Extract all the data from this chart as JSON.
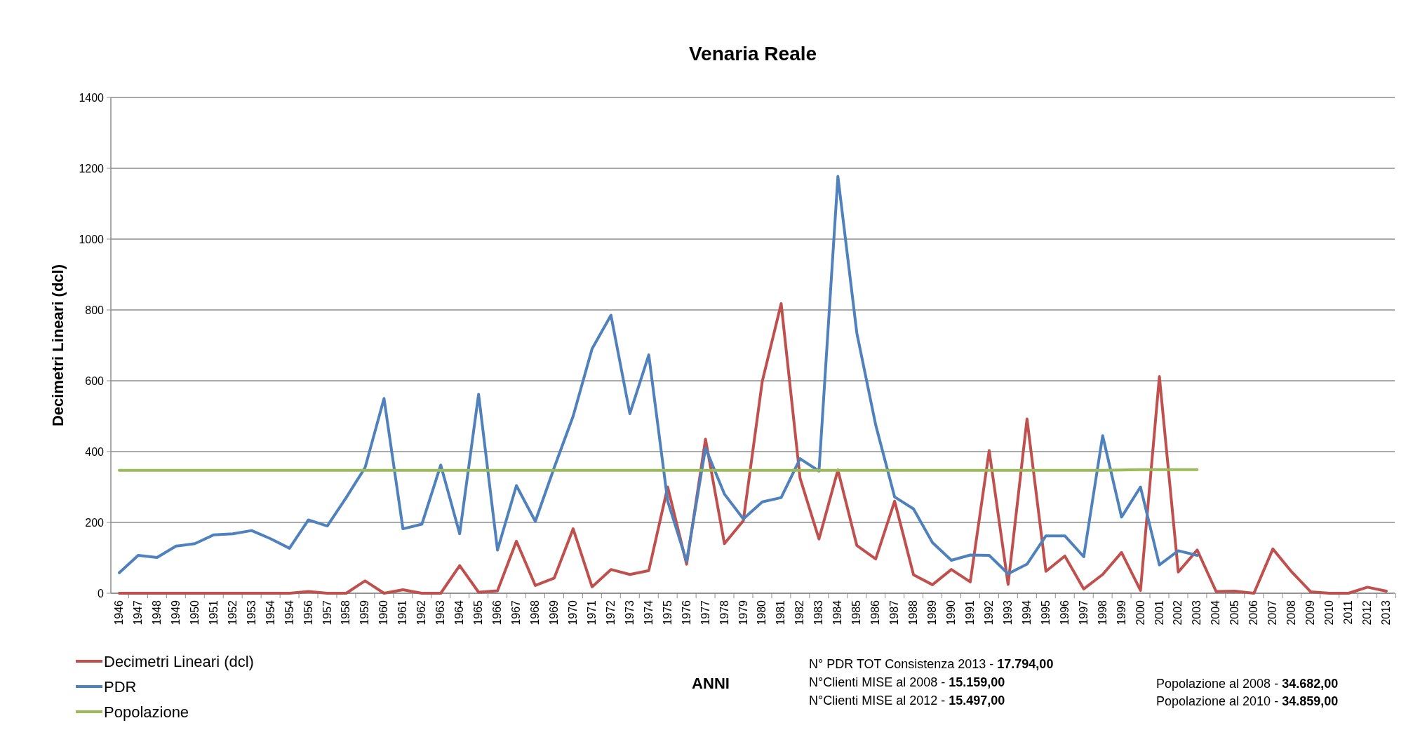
{
  "chart_data": {
    "type": "line",
    "title": "Venaria Reale",
    "xlabel": "ANNI",
    "ylabel": "Decimetri Lineari (dcl)",
    "categories": [
      "1946",
      "1947",
      "1948",
      "1949",
      "1950",
      "1951",
      "1952",
      "1953",
      "1954",
      "1954",
      "1956",
      "1957",
      "1958",
      "1959",
      "1960",
      "1961",
      "1962",
      "1963",
      "1964",
      "1965",
      "1966",
      "1967",
      "1968",
      "1969",
      "1970",
      "1971",
      "1972",
      "1973",
      "1974",
      "1975",
      "1976",
      "1977",
      "1978",
      "1979",
      "1980",
      "1981",
      "1982",
      "1983",
      "1984",
      "1985",
      "1986",
      "1987",
      "1988",
      "1989",
      "1990",
      "1991",
      "1992",
      "1993",
      "1994",
      "1995",
      "1996",
      "1997",
      "1998",
      "1999",
      "2000",
      "2001",
      "2002",
      "2003",
      "2004",
      "2005",
      "2006",
      "2007",
      "2008",
      "2009",
      "2010",
      "2011",
      "2012",
      "2013"
    ],
    "series": [
      {
        "name": "Decimetri Lineari (dcl)",
        "color": "#c0504d",
        "values": [
          0,
          0,
          0,
          0,
          0,
          0,
          0,
          0,
          0,
          0,
          5,
          0,
          0,
          35,
          0,
          10,
          0,
          0,
          78,
          3,
          7,
          147,
          22,
          43,
          182,
          18,
          67,
          53,
          64,
          300,
          82,
          435,
          140,
          205,
          598,
          818,
          325,
          153,
          348,
          135,
          97,
          260,
          52,
          24,
          67,
          32,
          403,
          25,
          492,
          62,
          105,
          12,
          53,
          115,
          8,
          612,
          60,
          122,
          5,
          6,
          0,
          125,
          60,
          4,
          0,
          0,
          17,
          6
        ]
      },
      {
        "name": "PDR",
        "color": "#4f81bd",
        "values": [
          58,
          107,
          101,
          133,
          140,
          165,
          168,
          177,
          154,
          127,
          207,
          190,
          270,
          355,
          550,
          182,
          195,
          362,
          168,
          562,
          122,
          304,
          203,
          355,
          500,
          690,
          785,
          507,
          673,
          260,
          90,
          410,
          280,
          210,
          258,
          270,
          380,
          345,
          1177,
          735,
          475,
          272,
          238,
          143,
          93,
          108,
          107,
          55,
          82,
          162,
          162,
          103,
          445,
          215,
          300,
          80,
          120,
          107,
          null,
          null,
          null,
          null,
          null,
          null,
          null,
          null,
          null,
          null
        ]
      },
      {
        "name": "Popolazione",
        "color": "#9bbb59",
        "values": [
          347,
          347,
          347,
          347,
          347,
          347,
          347,
          347,
          347,
          347,
          347,
          347,
          347,
          347,
          347,
          347,
          347,
          347,
          347,
          347,
          347,
          347,
          347,
          347,
          347,
          347,
          347,
          347,
          347,
          347,
          347,
          347,
          347,
          347,
          347,
          347,
          347,
          347,
          347,
          347,
          347,
          347,
          347,
          347,
          347,
          347,
          347,
          347,
          347,
          347,
          347,
          347,
          347,
          348,
          349,
          349,
          349,
          349,
          null,
          null,
          null,
          null,
          null,
          null,
          null,
          null,
          null,
          null
        ]
      }
    ],
    "ylim": [
      0,
      1400
    ],
    "yticks": [
      0,
      200,
      400,
      600,
      800,
      1000,
      1200,
      1400
    ],
    "grid": "y",
    "legend": "bottom left",
    "marker": "none",
    "line_style": "solid",
    "annotations": [
      "N° PDR TOT Consistenza 2013 - 17.794,00",
      "N°Clienti MISE al 2008 - 15.159,00",
      "N°Clienti MISE al 2012 - 15.497,00",
      "Popolazione al 2008 - 34.682,00",
      "Popolazione al 2010 - 34.859,00"
    ]
  }
}
